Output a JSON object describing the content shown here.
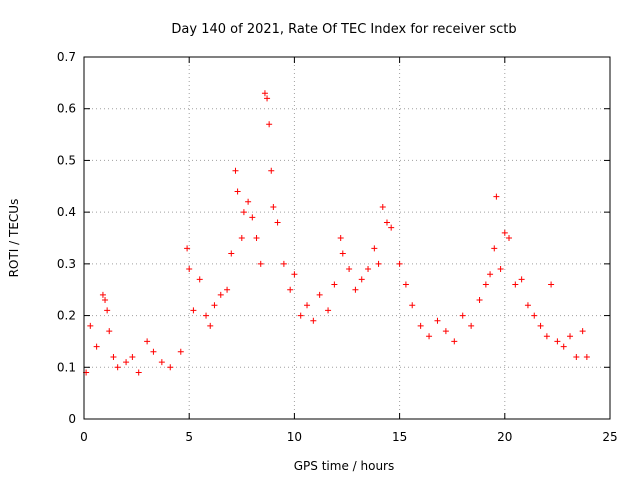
{
  "chart_data": {
    "type": "scatter",
    "title": "Day 140 of 2021, Rate Of TEC Index for receiver sctb",
    "xlabel": "GPS time / hours",
    "ylabel": "ROTI / TECUs",
    "xlim": [
      0,
      25
    ],
    "ylim": [
      0,
      0.7
    ],
    "xticks": [
      0,
      5,
      10,
      15,
      20,
      25
    ],
    "yticks": [
      0,
      0.1,
      0.2,
      0.3,
      0.4,
      0.5,
      0.6,
      0.7
    ],
    "grid": true,
    "marker": "+",
    "color": "#ff0000",
    "series": [
      {
        "x": [
          0.1,
          0.3,
          0.6,
          0.9,
          1.0,
          1.1,
          1.2,
          1.4,
          1.6,
          2.0,
          2.3,
          2.6,
          3.0,
          3.3,
          3.7,
          4.1,
          4.6,
          4.9,
          5.0,
          5.2,
          5.5,
          5.8,
          6.0,
          6.2,
          6.5,
          6.8,
          7.0,
          7.2,
          7.3,
          7.5,
          7.6,
          7.8,
          8.0,
          8.2,
          8.4,
          8.6,
          8.7,
          8.8,
          8.9,
          9.0,
          9.2,
          9.5,
          9.8,
          10.0,
          10.3,
          10.6,
          10.9,
          11.2,
          11.6,
          11.9,
          12.2,
          12.3,
          12.6,
          12.9,
          13.2,
          13.5,
          13.8,
          14.0,
          14.2,
          14.4,
          14.6,
          15.0,
          15.3,
          15.6,
          16.0,
          16.4,
          16.8,
          17.2,
          17.6,
          18.0,
          18.4,
          18.8,
          19.1,
          19.3,
          19.5,
          19.6,
          19.8,
          20.0,
          20.2,
          20.5,
          20.8,
          21.1,
          21.4,
          21.7,
          22.0,
          22.2,
          22.5,
          22.8,
          23.1,
          23.4,
          23.7,
          23.9
        ],
        "y": [
          0.09,
          0.18,
          0.14,
          0.24,
          0.23,
          0.21,
          0.17,
          0.12,
          0.1,
          0.11,
          0.12,
          0.09,
          0.15,
          0.13,
          0.11,
          0.1,
          0.13,
          0.33,
          0.29,
          0.21,
          0.27,
          0.2,
          0.18,
          0.22,
          0.24,
          0.25,
          0.32,
          0.48,
          0.44,
          0.35,
          0.4,
          0.42,
          0.39,
          0.35,
          0.3,
          0.63,
          0.62,
          0.57,
          0.48,
          0.41,
          0.38,
          0.3,
          0.25,
          0.28,
          0.2,
          0.22,
          0.19,
          0.24,
          0.21,
          0.26,
          0.35,
          0.32,
          0.29,
          0.25,
          0.27,
          0.29,
          0.33,
          0.3,
          0.41,
          0.38,
          0.37,
          0.3,
          0.26,
          0.22,
          0.18,
          0.16,
          0.19,
          0.17,
          0.15,
          0.2,
          0.18,
          0.23,
          0.26,
          0.28,
          0.33,
          0.43,
          0.29,
          0.36,
          0.35,
          0.26,
          0.27,
          0.22,
          0.2,
          0.18,
          0.16,
          0.26,
          0.15,
          0.14,
          0.16,
          0.12,
          0.17,
          0.12
        ]
      }
    ]
  }
}
